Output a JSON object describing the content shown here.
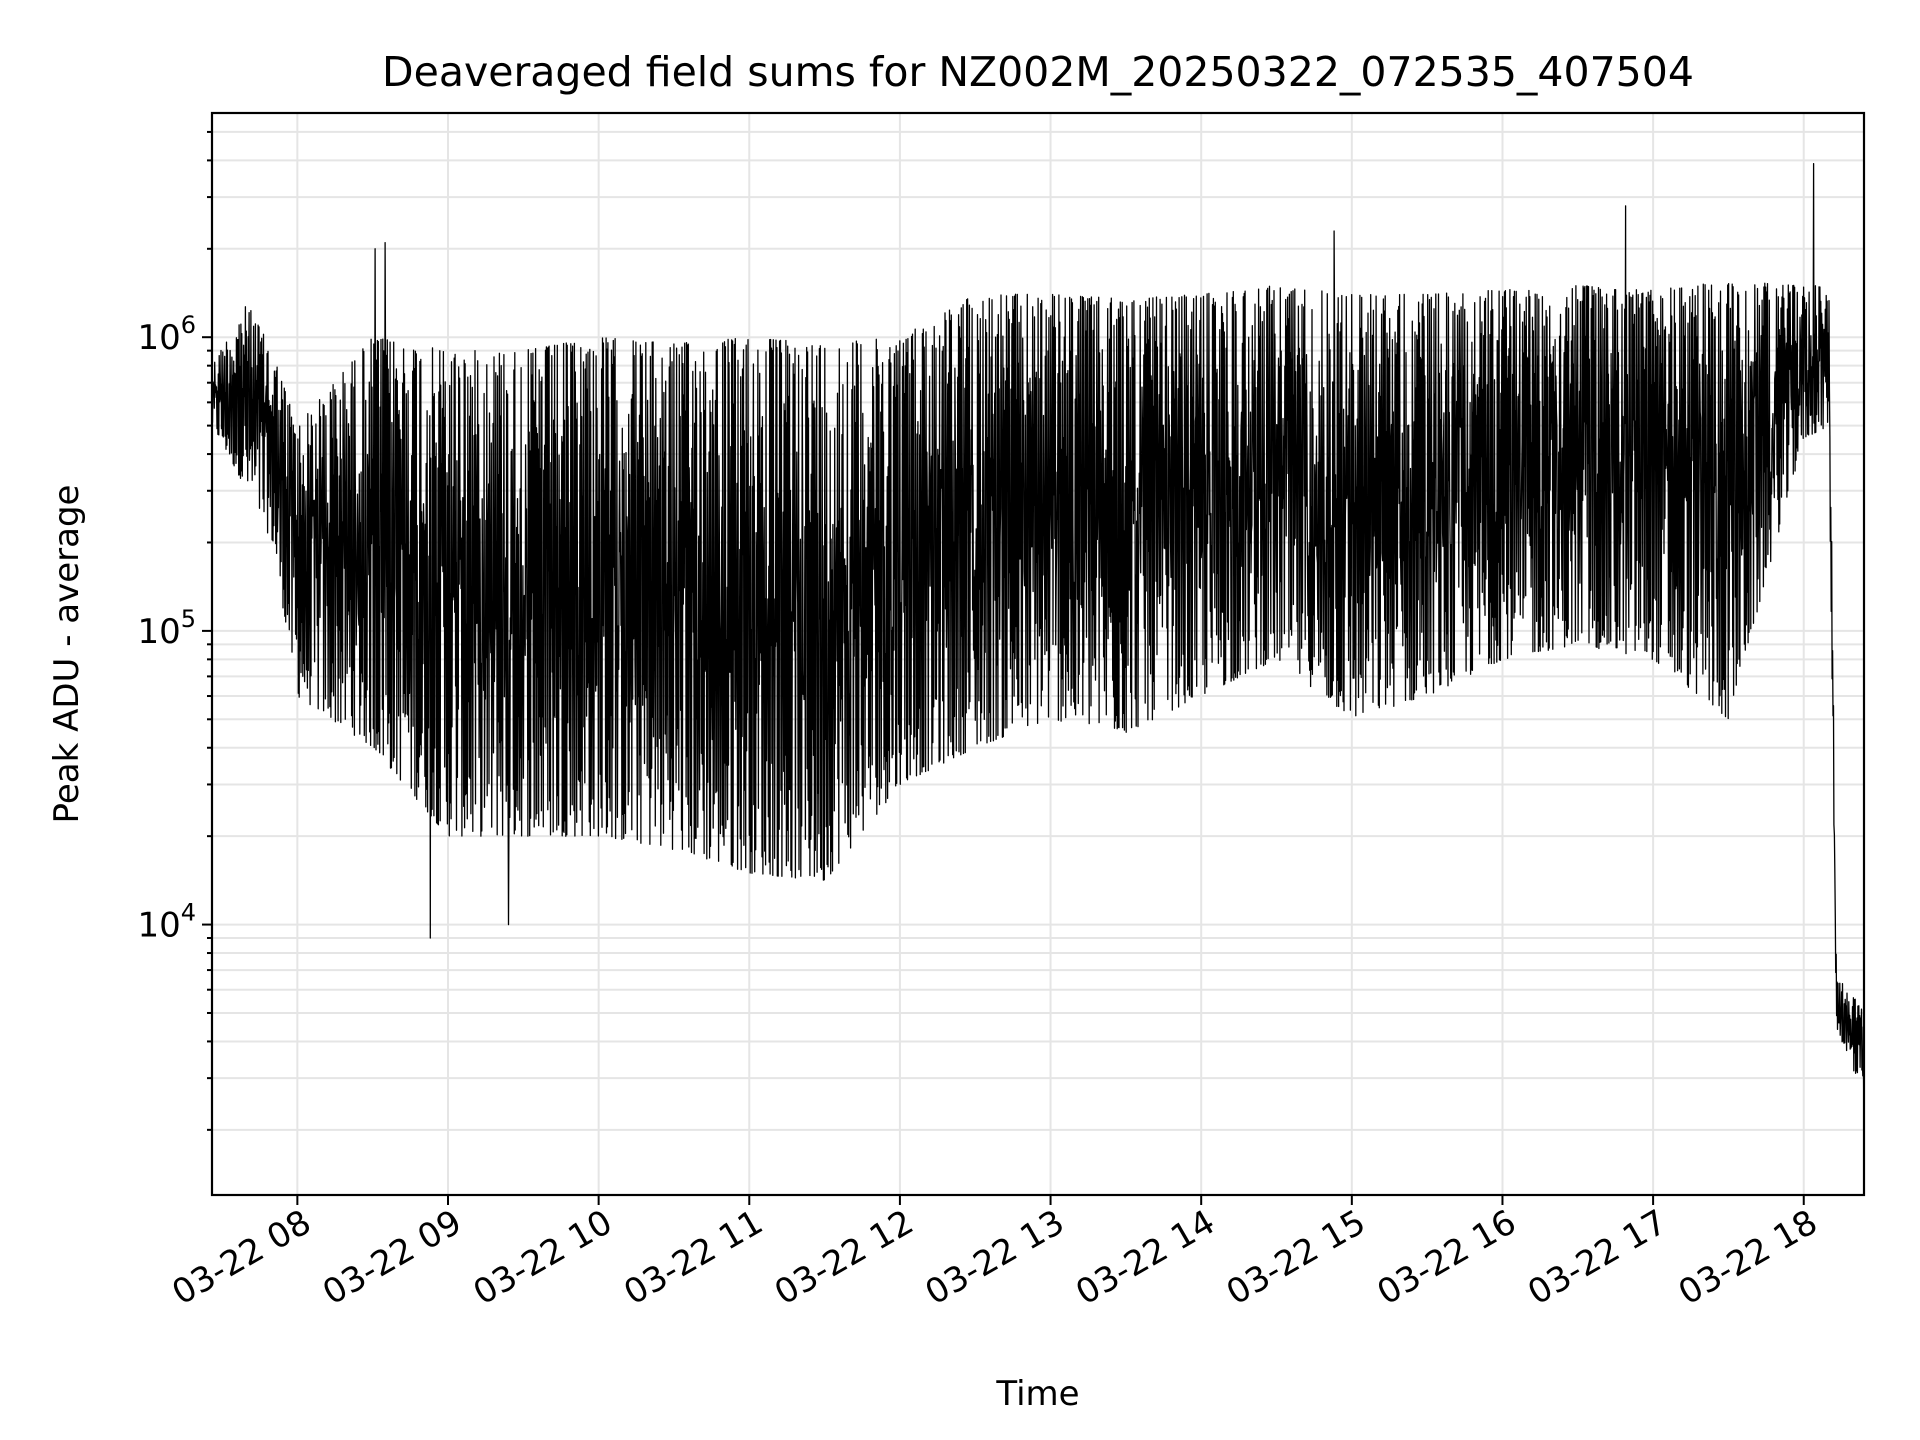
{
  "chart_data": {
    "type": "line",
    "title": "Deaveraged field sums for NZ002M_20250322_072535_407504",
    "xlabel": "Time",
    "ylabel": "Peak ADU - average",
    "yscale": "log",
    "xlim": [
      "2025-03-22 07:26",
      "2025-03-22 18:24"
    ],
    "ylim": [
      1200,
      5800000
    ],
    "grid": true,
    "x_ticks": [
      "2025-03-22 08:00",
      "2025-03-22 09:00",
      "2025-03-22 10:00",
      "2025-03-22 11:00",
      "2025-03-22 12:00",
      "2025-03-22 13:00",
      "2025-03-22 14:00",
      "2025-03-22 15:00",
      "2025-03-22 16:00",
      "2025-03-22 17:00",
      "2025-03-22 18:00"
    ],
    "x_tick_labels": [
      "03-22 08",
      "03-22 09",
      "03-22 10",
      "03-22 11",
      "03-22 12",
      "03-22 13",
      "03-22 14",
      "03-22 15",
      "03-22 16",
      "03-22 17",
      "03-22 18"
    ],
    "y_ticks": [
      10000,
      100000,
      1000000
    ],
    "y_tick_labels": [
      {
        "base": "10",
        "exp": "4"
      },
      {
        "base": "10",
        "exp": "5"
      },
      {
        "base": "10",
        "exp": "6"
      }
    ],
    "colors": {
      "line": "#000000",
      "grid": "#e5e5e5",
      "frame": "#000000"
    },
    "series": [
      {
        "envelope": {
          "x": [
            "2025-03-22 07:26",
            "2025-03-22 07:40",
            "2025-03-22 07:50",
            "2025-03-22 08:00",
            "2025-03-22 08:30",
            "2025-03-22 09:00",
            "2025-03-22 09:30",
            "2025-03-22 10:00",
            "2025-03-22 10:30",
            "2025-03-22 11:00",
            "2025-03-22 11:30",
            "2025-03-22 12:00",
            "2025-03-22 12:30",
            "2025-03-22 13:00",
            "2025-03-22 13:30",
            "2025-03-22 14:00",
            "2025-03-22 14:30",
            "2025-03-22 15:00",
            "2025-03-22 15:30",
            "2025-03-22 16:00",
            "2025-03-22 16:30",
            "2025-03-22 17:00",
            "2025-03-22 17:30",
            "2025-03-22 18:00",
            "2025-03-22 18:10",
            "2025-03-22 18:13",
            "2025-03-22 18:24"
          ],
          "low": [
            500000,
            300000,
            200000,
            60000,
            40000,
            20000,
            20000,
            20000,
            18000,
            15000,
            14000,
            30000,
            40000,
            50000,
            45000,
            60000,
            80000,
            50000,
            60000,
            80000,
            90000,
            80000,
            50000,
            450000,
            500000,
            4500,
            2500
          ],
          "high": [
            800000,
            1300000,
            900000,
            500000,
            1000000,
            900000,
            900000,
            1000000,
            950000,
            1000000,
            950000,
            1000000,
            1400000,
            1400000,
            1350000,
            1400000,
            1500000,
            1400000,
            1400000,
            1450000,
            1500000,
            1450000,
            1550000,
            1500000,
            1500000,
            7000,
            5000
          ]
        },
        "spikes": [
          {
            "x": "2025-03-22 08:31",
            "y": 2000000
          },
          {
            "x": "2025-03-22 08:35",
            "y": 2100000
          },
          {
            "x": "2025-03-22 14:53",
            "y": 2300000
          },
          {
            "x": "2025-03-22 16:49",
            "y": 2800000
          },
          {
            "x": "2025-03-22 18:04",
            "y": 3900000
          },
          {
            "x": "2025-03-22 08:53",
            "y": 9000
          },
          {
            "x": "2025-03-22 09:24",
            "y": 10000
          }
        ]
      }
    ]
  }
}
